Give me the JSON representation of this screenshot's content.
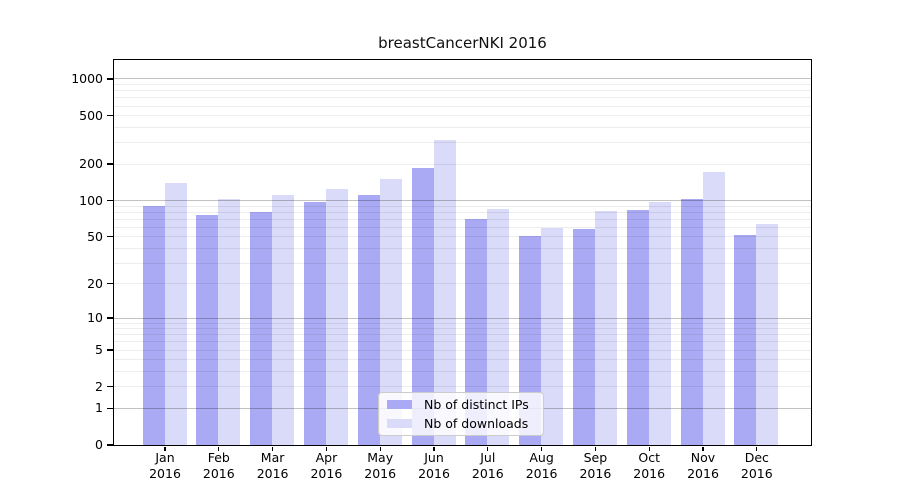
{
  "title": "breastCancerNKI 2016",
  "chart_data": {
    "type": "bar",
    "title": "breastCancerNKI 2016",
    "categories": [
      "Jan 2016",
      "Feb 2016",
      "Mar 2016",
      "Apr 2016",
      "May 2016",
      "Jun 2016",
      "Jul 2016",
      "Aug 2016",
      "Sep 2016",
      "Oct 2016",
      "Nov 2016",
      "Dec 2016"
    ],
    "x_tick_month": [
      "Jan",
      "Feb",
      "Mar",
      "Apr",
      "May",
      "Jun",
      "Jul",
      "Aug",
      "Sep",
      "Oct",
      "Nov",
      "Dec"
    ],
    "x_tick_year": "2016",
    "series": [
      {
        "name": "Nb of distinct IPs",
        "color": "#a9a9f4",
        "values": [
          90,
          75,
          80,
          97,
          110,
          185,
          70,
          50,
          57,
          83,
          102,
          51
        ]
      },
      {
        "name": "Nb of downloads",
        "color": "#dadaf9",
        "values": [
          138,
          102,
          110,
          124,
          150,
          310,
          84,
          59,
          81,
          97,
          170,
          63
        ]
      }
    ],
    "yscale": "log10(1+x)",
    "y_ticks": [
      1000,
      500,
      200,
      100,
      50,
      20,
      10,
      5,
      2,
      1,
      0
    ],
    "ylim": [
      0,
      1430
    ],
    "grid": "horizontal, major at powers of 10 plus faint log minors, drawn over bars",
    "legend_position": "inside lower-center"
  },
  "colors": {
    "distinct_ips": "#a9a9f4",
    "downloads": "#dadaf9",
    "grid_major": "#c2c2c2",
    "grid_minor": "#ededed",
    "spine": "#000000",
    "background": "#ffffff",
    "legend_border": "#cccccc"
  }
}
